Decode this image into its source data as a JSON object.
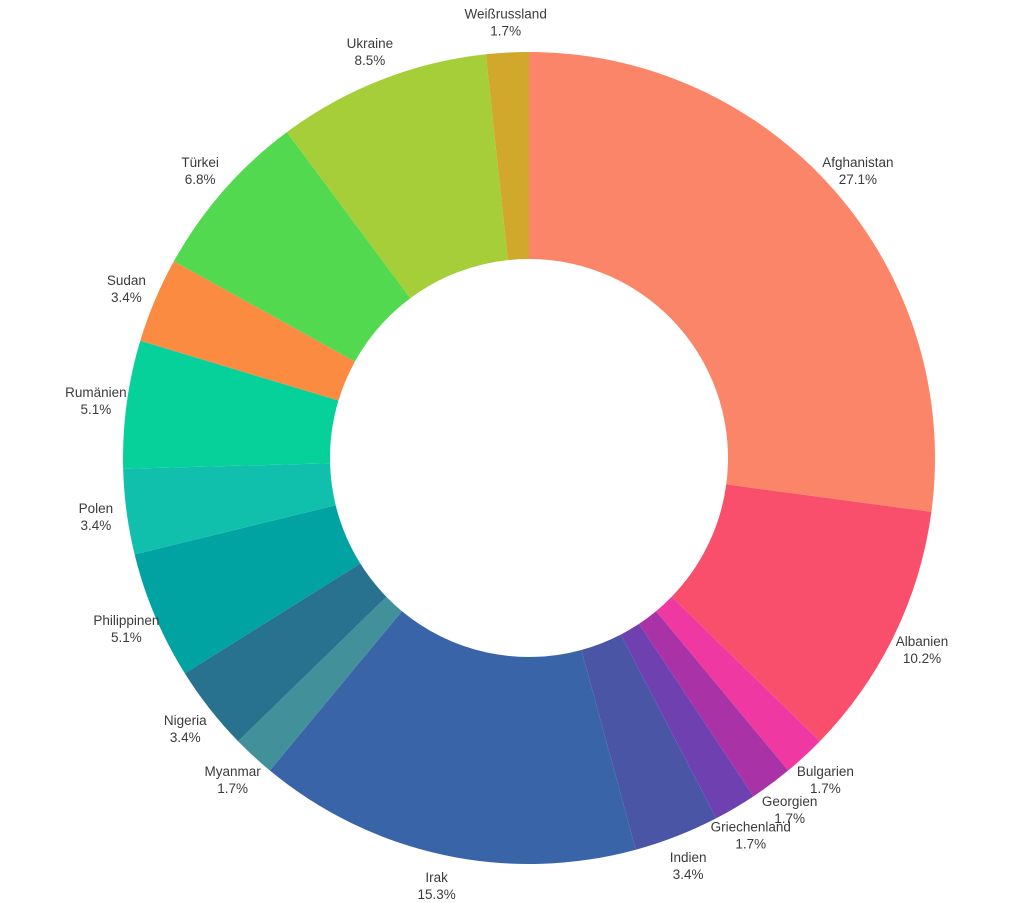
{
  "page": {
    "background_color": "#ffffff",
    "text_color": "#3b3b3b"
  },
  "chart_data": {
    "type": "pie",
    "subtype": "donut",
    "title": "",
    "legend": "none",
    "labels_position": "outside",
    "direction": "clockwise",
    "start_angle": "12-o-clock",
    "hole_ratio": 0.49,
    "categories": [
      "Afghanistan",
      "Albanien",
      "Bulgarien",
      "Georgien",
      "Griechenland",
      "Indien",
      "Irak",
      "Myanmar",
      "Nigeria",
      "Philippinen",
      "Polen",
      "Rumänien",
      "Sudan",
      "Türkei",
      "Ukraine",
      "Weißrussland"
    ],
    "values": [
      27.1,
      10.2,
      1.7,
      1.7,
      1.7,
      3.4,
      15.3,
      1.7,
      3.4,
      5.1,
      3.4,
      5.1,
      3.4,
      6.8,
      8.5,
      1.7
    ],
    "slices": [
      {
        "label": "Afghanistan",
        "percent": "27.1%",
        "value": 27.1,
        "units": 16,
        "color": "#FB8569"
      },
      {
        "label": "Albanien",
        "percent": "10.2%",
        "value": 10.2,
        "units": 6,
        "color": "#F94F6C"
      },
      {
        "label": "Bulgarien",
        "percent": "1.7%",
        "value": 1.7,
        "units": 1,
        "color": "#EF38A2"
      },
      {
        "label": "Georgien",
        "percent": "1.7%",
        "value": 1.7,
        "units": 1,
        "color": "#A832A6"
      },
      {
        "label": "Griechenland",
        "percent": "1.7%",
        "value": 1.7,
        "units": 1,
        "color": "#6E40B0"
      },
      {
        "label": "Indien",
        "percent": "3.4%",
        "value": 3.4,
        "units": 2,
        "color": "#4B55A6"
      },
      {
        "label": "Irak",
        "percent": "15.3%",
        "value": 15.3,
        "units": 9,
        "color": "#3A64A8"
      },
      {
        "label": "Myanmar",
        "percent": "1.7%",
        "value": 1.7,
        "units": 1,
        "color": "#42909A"
      },
      {
        "label": "Nigeria",
        "percent": "3.4%",
        "value": 3.4,
        "units": 2,
        "color": "#28728F"
      },
      {
        "label": "Philippinen",
        "percent": "5.1%",
        "value": 5.1,
        "units": 3,
        "color": "#00A2A2"
      },
      {
        "label": "Polen",
        "percent": "3.4%",
        "value": 3.4,
        "units": 2,
        "color": "#10C0AD"
      },
      {
        "label": "Rumänien",
        "percent": "5.1%",
        "value": 5.1,
        "units": 3,
        "color": "#07D19A"
      },
      {
        "label": "Sudan",
        "percent": "3.4%",
        "value": 3.4,
        "units": 2,
        "color": "#FB8B41"
      },
      {
        "label": "Türkei",
        "percent": "6.8%",
        "value": 6.8,
        "units": 4,
        "color": "#52D950"
      },
      {
        "label": "Ukraine",
        "percent": "8.5%",
        "value": 8.5,
        "units": 5,
        "color": "#A6CE39"
      },
      {
        "label": "Weißrussland",
        "percent": "1.7%",
        "value": 1.7,
        "units": 1,
        "color": "#D2A82C"
      }
    ]
  }
}
